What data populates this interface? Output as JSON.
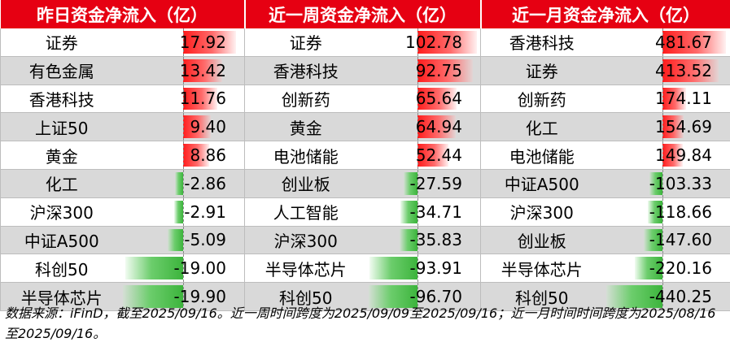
{
  "headers": [
    "昨日资金净流入（亿）",
    "近一周资金净流入（亿）",
    "近一月资金净流入（亿）"
  ],
  "tables": [
    {
      "max_abs": 20,
      "rows": [
        {
          "name": "证券",
          "value": "17.92"
        },
        {
          "name": "有色金属",
          "value": "13.42"
        },
        {
          "name": "香港科技",
          "value": "11.76"
        },
        {
          "name": "上证50",
          "value": "9.40"
        },
        {
          "name": "黄金",
          "value": "8.86"
        },
        {
          "name": "化工",
          "value": "-2.86"
        },
        {
          "name": "沪深300",
          "value": "-2.91"
        },
        {
          "name": "中证A500",
          "value": "-5.09"
        },
        {
          "name": "科创50",
          "value": "-19.00"
        },
        {
          "name": "半导体芯片",
          "value": "-19.90"
        }
      ]
    },
    {
      "max_abs": 100,
      "rows": [
        {
          "name": "证券",
          "value": "102.78"
        },
        {
          "name": "香港科技",
          "value": "92.75"
        },
        {
          "name": "创新药",
          "value": "65.64"
        },
        {
          "name": "黄金",
          "value": "64.94"
        },
        {
          "name": "电池储能",
          "value": "52.44"
        },
        {
          "name": "创业板",
          "value": "-27.59"
        },
        {
          "name": "人工智能",
          "value": "-34.71"
        },
        {
          "name": "沪深300",
          "value": "-35.83"
        },
        {
          "name": "半导体芯片",
          "value": "-93.91"
        },
        {
          "name": "科创50",
          "value": "-96.70"
        }
      ]
    },
    {
      "max_abs": 470,
      "rows": [
        {
          "name": "香港科技",
          "value": "481.67"
        },
        {
          "name": "证券",
          "value": "413.52"
        },
        {
          "name": "创新药",
          "value": "174.11"
        },
        {
          "name": "化工",
          "value": "154.69"
        },
        {
          "name": "电池储能",
          "value": "149.84"
        },
        {
          "name": "中证A500",
          "value": "-103.33"
        },
        {
          "name": "沪深300",
          "value": "-118.66"
        },
        {
          "name": "创业板",
          "value": "-147.60"
        },
        {
          "name": "半导体芯片",
          "value": "-220.16"
        },
        {
          "name": "科创50",
          "value": "-440.25"
        }
      ]
    }
  ],
  "note": "数据来源：iFinD，截至2025/09/16。近一周时间跨度为2025/09/09至2025/09/16；近一月时间时间跨度为2025/08/16至2025/09/16。",
  "colors": {
    "header": "#e60012",
    "positive": "#ff1c1c",
    "negative": "#3cb43c",
    "row_alt": "#d9d9d9"
  }
}
